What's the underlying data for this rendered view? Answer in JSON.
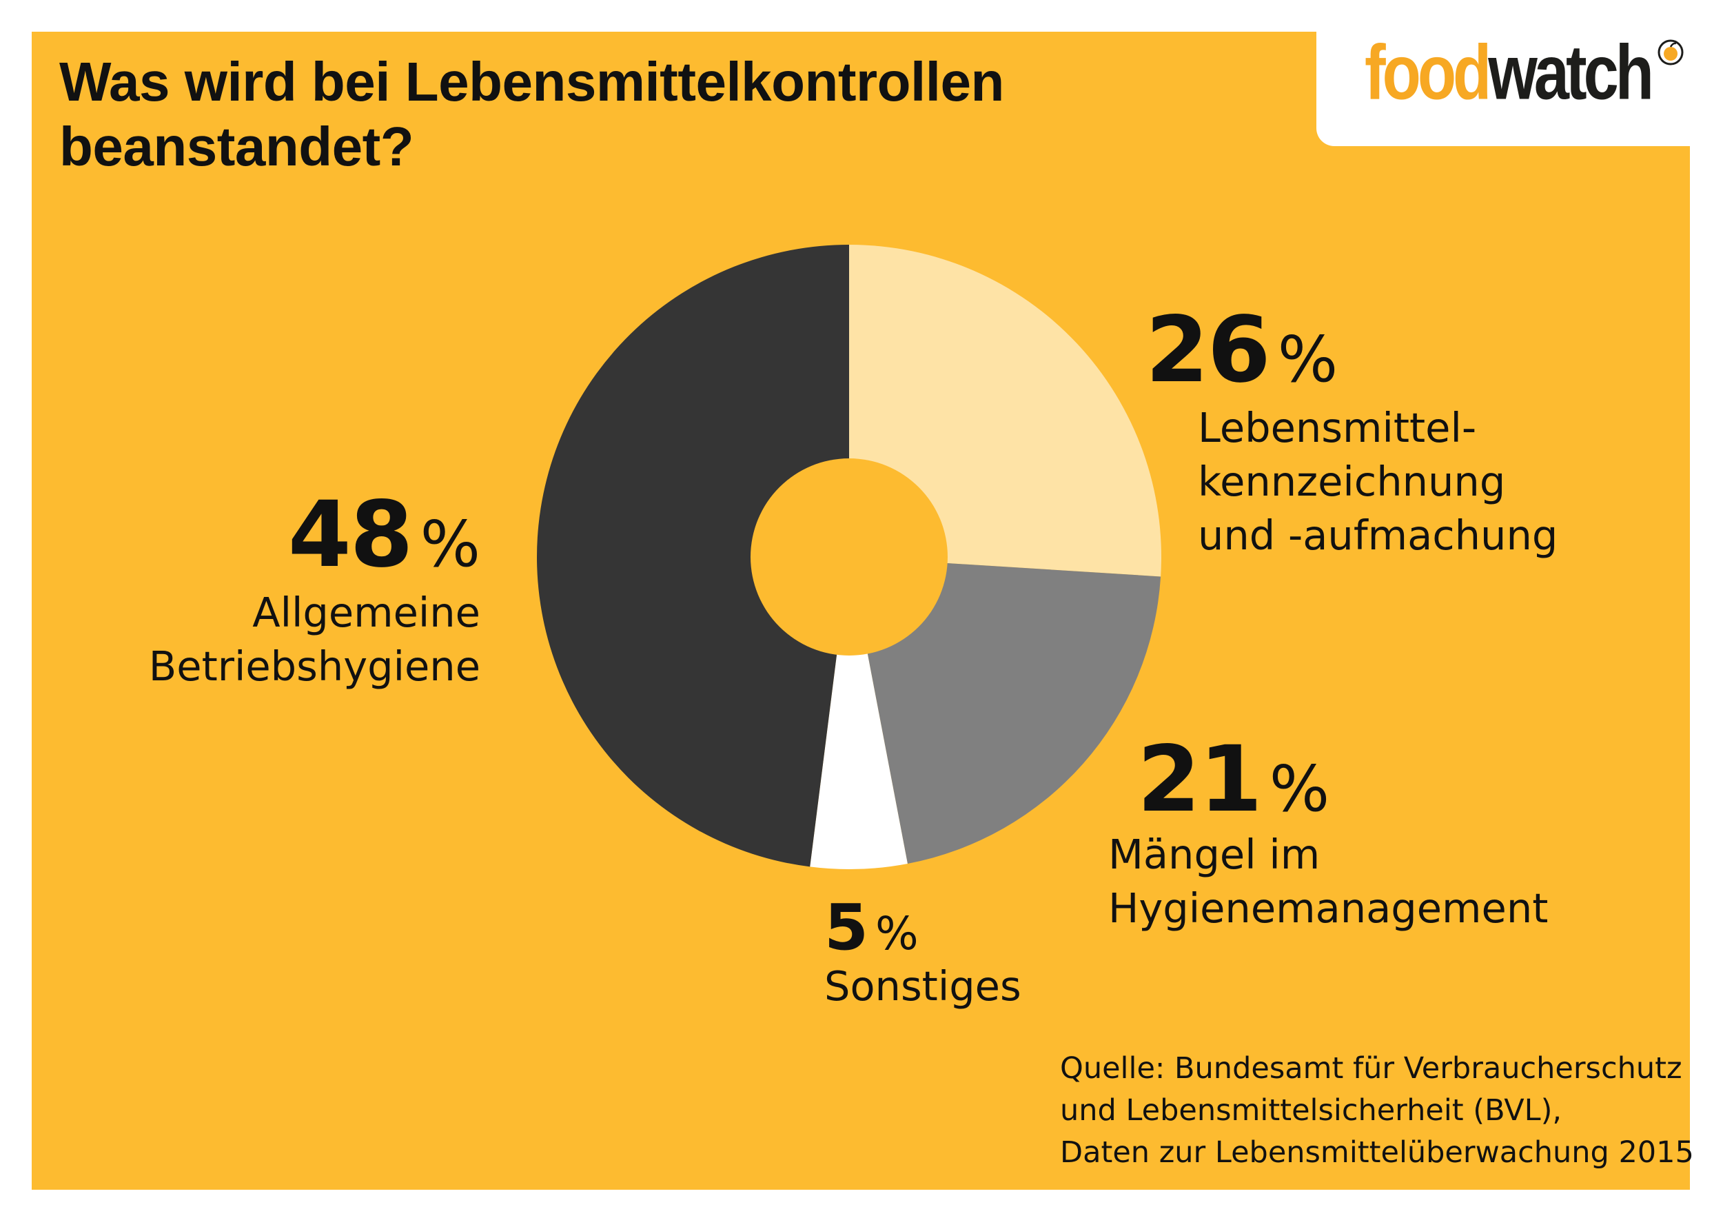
{
  "title": "Was wird bei Lebensmittelkontrollen beanstandet?",
  "logo": {
    "part1": "food",
    "part2": "watch",
    "mark_icon": "foodwatch-globe-mark"
  },
  "colors": {
    "background": "#fdbb30",
    "logo_orange": "#f7a823",
    "slice_hygiene": "#353535",
    "slice_kennzeichnung": "#fee3a6",
    "slice_management": "#808080",
    "slice_sonstiges": "#ffffff"
  },
  "chart_data": {
    "type": "pie",
    "style": "donut",
    "title": "Was wird bei Lebensmittelkontrollen beanstandet?",
    "unit": "%",
    "slices": [
      {
        "label": "Lebensmittel-\nkennzeichnung\nund -aufmachung",
        "value": 26,
        "value_text": "26",
        "color": "#fee3a6"
      },
      {
        "label": "Mängel im\nHygienemanagement",
        "value": 21,
        "value_text": "21",
        "color": "#808080"
      },
      {
        "label": "Sonstiges",
        "value": 5,
        "value_text": "5",
        "color": "#ffffff"
      },
      {
        "label": "Allgemeine\nBetriebshygiene",
        "value": 48,
        "value_text": "48",
        "color": "#353535"
      }
    ]
  },
  "source": "Quelle: Bundesamt für Verbraucherschutz\nund Lebensmittelsicherheit (BVL),\nDaten zur Lebensmittelüberwachung 2015"
}
